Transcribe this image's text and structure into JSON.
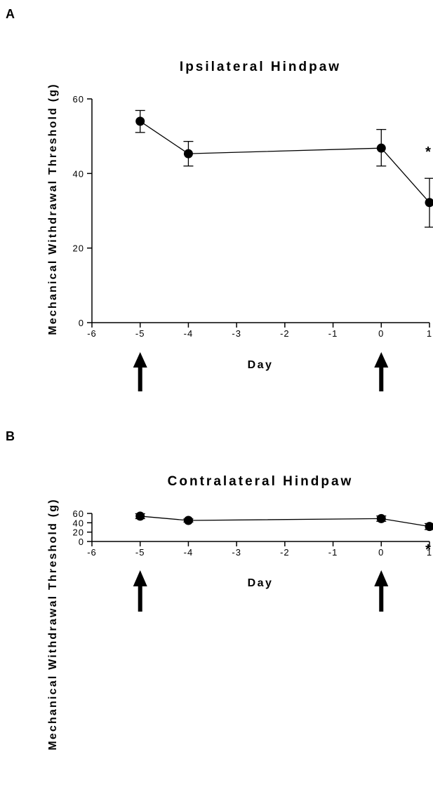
{
  "chart_data": [
    {
      "panel": "A",
      "type": "line",
      "title": "Ipsilateral Hindpaw",
      "xlabel": "Day",
      "ylabel": "Mechanical Withdrawal Threshold (g)",
      "xlim": [
        -6,
        1
      ],
      "ylim": [
        0,
        60
      ],
      "xticks": [
        "-6",
        "-5",
        "-4",
        "-3",
        "-2",
        "-1",
        "0",
        "1"
      ],
      "yticks": [
        "0",
        "20",
        "40",
        "60"
      ],
      "series": [
        {
          "x": [
            -5,
            -4,
            0,
            1
          ],
          "y": [
            54,
            45.3,
            46.8,
            32.2
          ],
          "err_low": [
            51,
            42,
            42,
            25.6
          ],
          "err_high": [
            56.9,
            48.6,
            51.8,
            38.7
          ]
        }
      ],
      "annotations": [
        {
          "text": "*",
          "x": 1
        }
      ],
      "arrows_at_x": [
        -5,
        0
      ]
    },
    {
      "panel": "B",
      "type": "line",
      "title": "Contralateral Hindpaw",
      "xlabel": "Day",
      "ylabel": "Mechanical Withdrawal Threshold (g)",
      "xlim": [
        -6,
        1
      ],
      "ylim": [
        0,
        60
      ],
      "xticks": [
        "-6",
        "-5",
        "-4",
        "-3",
        "-2",
        "-1",
        "0",
        "1"
      ],
      "yticks": [
        "0",
        "20",
        "40",
        "60"
      ],
      "series": [
        {
          "x": [
            -5,
            -4,
            0,
            1
          ],
          "y": [
            54.1,
            45,
            48.9,
            32
          ],
          "err_low": [
            48.8,
            41.6,
            43.1,
            25.6
          ],
          "err_high": [
            59.4,
            48.3,
            54.6,
            38.3
          ]
        }
      ],
      "annotations": [
        {
          "text": "*",
          "x": 1
        }
      ],
      "arrows_at_x": [
        -5,
        0
      ]
    }
  ]
}
